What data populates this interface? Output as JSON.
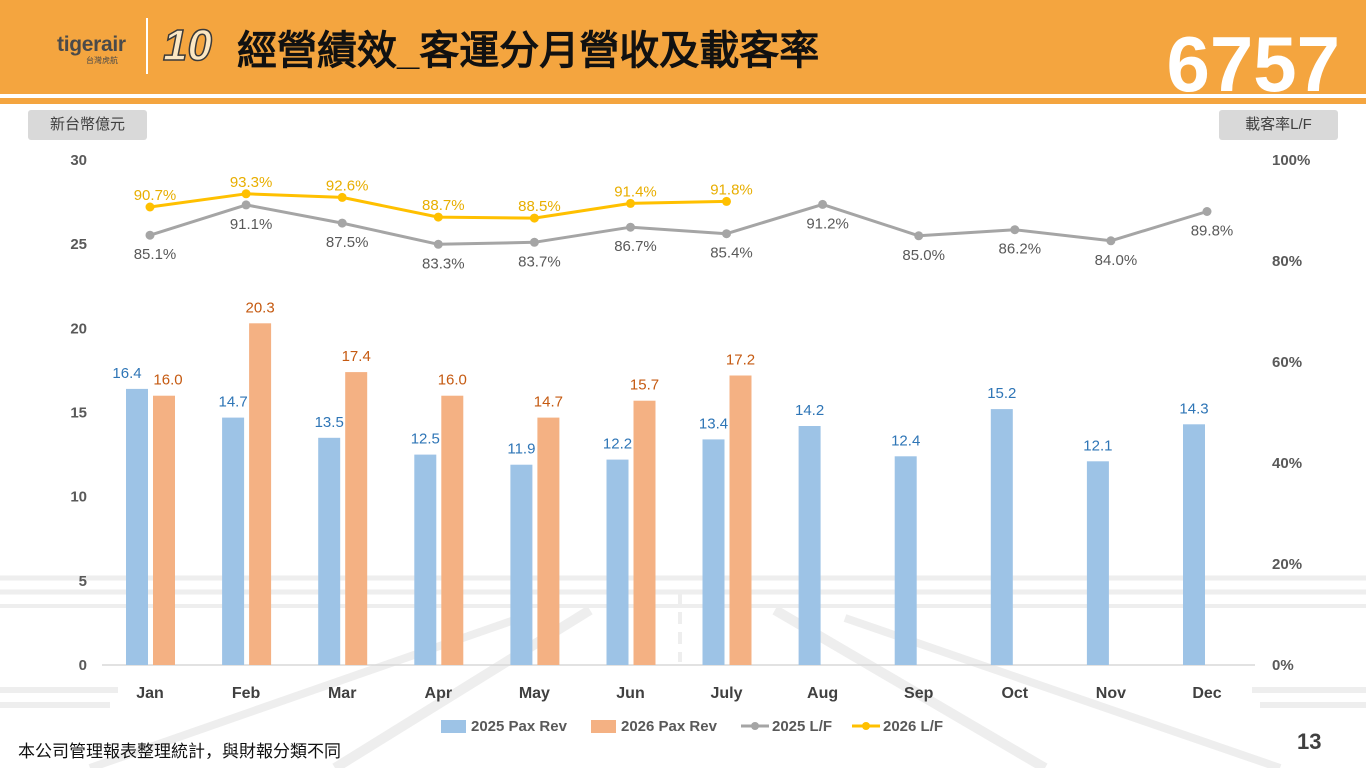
{
  "header": {
    "brand": "tigerair",
    "brand_sub": "台灣虎航",
    "anniversary_logo": "10",
    "title": "經營績效_客運分月營收及載客率",
    "stock_code": "6757",
    "band_color": "#F4A53F"
  },
  "chart_data": {
    "type": "bar",
    "categories": [
      "Jan",
      "Feb",
      "Mar",
      "Apr",
      "May",
      "Jun",
      "July",
      "Aug",
      "Sep",
      "Oct",
      "Nov",
      "Dec"
    ],
    "y_left_label": "新台幣億元",
    "y_left_range": [
      0,
      30
    ],
    "y_left_ticks": [
      0,
      5,
      10,
      15,
      20,
      25,
      30
    ],
    "y_right_label": "載客率L/F",
    "y_right_unit": "%",
    "y_right_range": [
      0,
      100
    ],
    "y_right_ticks": [
      0,
      20,
      40,
      60,
      80,
      100
    ],
    "grid": false,
    "legend_position": "bottom",
    "series": [
      {
        "name": "2025 Pax Rev",
        "type": "bar",
        "axis": "left",
        "color": "#9DC3E6",
        "label_color": "#2E75B6",
        "data_labels": "above",
        "values": [
          16.4,
          14.7,
          13.5,
          12.5,
          11.9,
          12.2,
          13.4,
          14.2,
          12.4,
          15.2,
          12.1,
          14.3
        ]
      },
      {
        "name": "2026 Pax Rev",
        "type": "bar",
        "axis": "left",
        "color": "#F4B183",
        "label_color": "#C55A11",
        "data_labels": "above",
        "values": [
          16.0,
          20.3,
          17.4,
          16.0,
          14.7,
          15.7,
          17.2,
          null,
          null,
          null,
          null,
          null
        ]
      },
      {
        "name": "2025 L/F",
        "type": "line",
        "axis": "right",
        "color": "#A5A5A5",
        "label_color": "#595959",
        "data_labels": "below",
        "values": [
          85.1,
          91.1,
          87.5,
          83.3,
          83.7,
          86.7,
          85.4,
          91.2,
          85.0,
          86.2,
          84.0,
          89.8
        ]
      },
      {
        "name": "2026 L/F",
        "type": "line",
        "axis": "right",
        "color": "#FFC000",
        "label_color": "#E8AE00",
        "data_labels": "above",
        "values": [
          90.7,
          93.3,
          92.6,
          88.7,
          88.5,
          91.4,
          91.8,
          null,
          null,
          null,
          null,
          null
        ]
      }
    ]
  },
  "footer": {
    "note": "本公司管理報表整理統計，與財報分類不同",
    "page_number": "13"
  }
}
